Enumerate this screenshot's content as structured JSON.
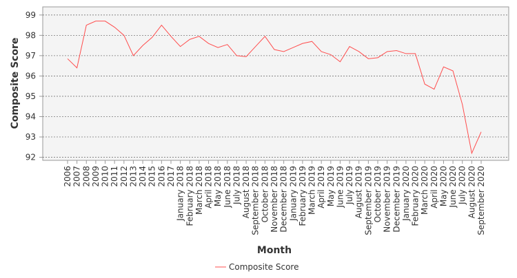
{
  "chart_data": {
    "type": "line",
    "x_label": "Month",
    "y_label": "Composite Score",
    "categories": [
      "2006",
      "2007",
      "2008",
      "2009",
      "2010",
      "2011",
      "2012",
      "2013",
      "2014",
      "2015",
      "2016",
      "2017",
      "January 2018",
      "February 2018",
      "March 2018",
      "April 2018",
      "May 2018",
      "June 2018",
      "July 2018",
      "August 2018",
      "September 2018",
      "October 2018",
      "November 2018",
      "December 2018",
      "January 2019",
      "February 2019",
      "March 2019",
      "April 2019",
      "May 2019",
      "June 2019",
      "July 2019",
      "August 2019",
      "September 2019",
      "October 2019",
      "November 2019",
      "December 2019",
      "January 2020",
      "February 2020",
      "March 2020",
      "April 2020",
      "May 2020",
      "June 2020",
      "July 2020",
      "August 2020",
      "September 2020"
    ],
    "series": [
      {
        "name": "Composite Score",
        "color": "#ff4d4d",
        "values": [
          96.85,
          96.4,
          98.5,
          98.7,
          98.7,
          98.4,
          98.0,
          97.0,
          97.5,
          97.9,
          98.5,
          97.95,
          97.45,
          97.8,
          97.95,
          97.6,
          97.4,
          97.55,
          97.0,
          96.95,
          97.45,
          97.95,
          97.3,
          97.2,
          97.4,
          97.6,
          97.7,
          97.2,
          97.05,
          96.7,
          97.45,
          97.2,
          96.85,
          96.9,
          97.2,
          97.25,
          97.1,
          97.1,
          95.6,
          95.35,
          96.45,
          96.25,
          94.6,
          92.2,
          93.25
        ]
      }
    ],
    "ylim": [
      91.85,
      99.4
    ],
    "yticks": [
      92,
      93,
      94,
      95,
      96,
      97,
      98,
      99
    ],
    "grid": true,
    "legend": "bottom"
  }
}
